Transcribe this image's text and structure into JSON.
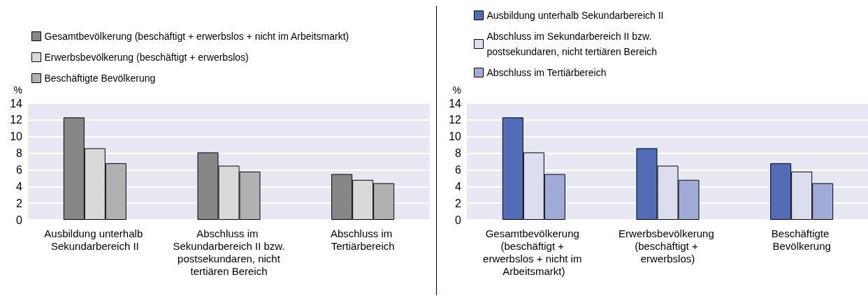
{
  "chart_data": [
    {
      "type": "bar",
      "ylabel": "%",
      "categories": [
        "Ausbildung unterhalb Sekundarbereich II",
        "Abschluss im Sekundarbereich II bzw. postsekundaren, nicht tertiären Bereich",
        "Abschluss im Tertiärbereich"
      ],
      "series": [
        {
          "name": "Gesamtbevölkerung (beschäftigt + erwerbslos + nicht im Arbeitsmarkt)",
          "color": "#878787",
          "values": [
            12.3,
            8.1,
            5.5
          ]
        },
        {
          "name": "Erwerbsbevölkerung (beschäftigt + erwerbslos)",
          "color": "#d9d9d9",
          "values": [
            8.6,
            6.5,
            4.8
          ]
        },
        {
          "name": "Beschäftigte Bevölkerung",
          "color": "#b1b1b1",
          "values": [
            6.8,
            5.8,
            4.4
          ]
        }
      ],
      "ylim": [
        0,
        14
      ],
      "yticks": [
        0,
        2,
        4,
        6,
        8,
        10,
        12,
        14
      ],
      "grid": "y",
      "legend": "top left"
    },
    {
      "type": "bar",
      "ylabel": "%",
      "categories": [
        "Gesamtbevölkerung (beschäftigt + erwerbslos + nicht im Arbeitsmarkt)",
        "Erwerbsbevölkerung (beschäftigt + erwerbslos)",
        "Beschäftigte Bevölkerung"
      ],
      "series": [
        {
          "name": "Ausbildung unterhalb Sekundarbereich II",
          "color": "#526db5",
          "values": [
            12.3,
            8.6,
            6.8
          ]
        },
        {
          "name": "Abschluss im Sekundarbereich II bzw. postsekundaren, nicht tertiären Bereich",
          "color": "#dcdef0",
          "values": [
            8.1,
            6.5,
            5.8
          ]
        },
        {
          "name": "Abschluss im Tertiärbereich",
          "color": "#a0abd8",
          "values": [
            5.5,
            4.8,
            4.4
          ]
        }
      ],
      "ylim": [
        0,
        14
      ],
      "yticks": [
        0,
        2,
        4,
        6,
        8,
        10,
        12,
        14
      ],
      "grid": "y",
      "legend": "top left"
    }
  ]
}
